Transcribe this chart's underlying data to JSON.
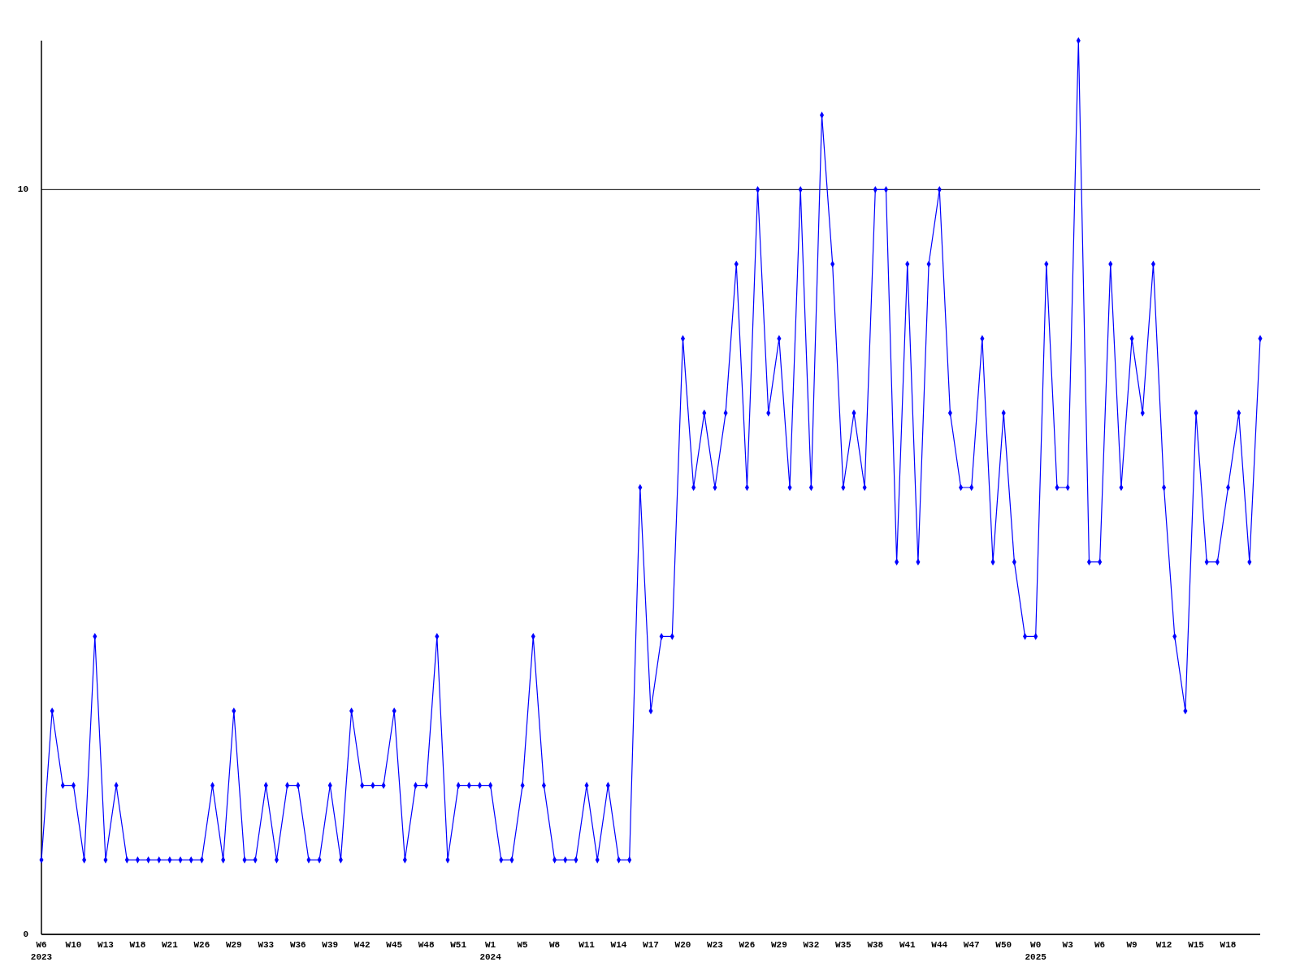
{
  "chart_data": {
    "type": "line",
    "categories": [
      "W6\n2023",
      null,
      null,
      "W10",
      null,
      null,
      "W13",
      null,
      null,
      "W18",
      null,
      null,
      "W21",
      null,
      null,
      "W26",
      null,
      null,
      "W29",
      null,
      null,
      "W33",
      null,
      null,
      "W36",
      null,
      null,
      "W39",
      null,
      null,
      "W42",
      null,
      null,
      "W45",
      null,
      null,
      "W48",
      null,
      null,
      "W51",
      null,
      null,
      "W1\n2024",
      null,
      null,
      "W5",
      null,
      null,
      "W8",
      null,
      null,
      "W11",
      null,
      null,
      "W14",
      null,
      null,
      "W17",
      null,
      null,
      "W20",
      null,
      null,
      "W23",
      null,
      null,
      "W26",
      null,
      null,
      "W29",
      null,
      null,
      "W32",
      null,
      null,
      "W35",
      null,
      null,
      "W38",
      null,
      null,
      "W41",
      null,
      null,
      "W44",
      null,
      null,
      "W47",
      null,
      null,
      "W50",
      null,
      null,
      "W0\n2025",
      null,
      null,
      "W3",
      null,
      null,
      "W6",
      null,
      null,
      "W9",
      null,
      null,
      "W12",
      null,
      null,
      "W15",
      null,
      null,
      "W18",
      null,
      null,
      null
    ],
    "values": [
      1,
      3,
      2,
      2,
      1,
      4,
      1,
      2,
      1,
      1,
      1,
      1,
      1,
      1,
      1,
      1,
      2,
      1,
      3,
      1,
      1,
      2,
      1,
      2,
      2,
      1,
      1,
      2,
      1,
      3,
      2,
      2,
      2,
      3,
      1,
      2,
      2,
      4,
      1,
      2,
      2,
      2,
      2,
      1,
      1,
      2,
      4,
      2,
      1,
      1,
      1,
      2,
      1,
      2,
      1,
      1,
      6,
      3,
      4,
      4,
      8,
      6,
      7,
      6,
      7,
      9,
      6,
      10,
      7,
      8,
      6,
      10,
      6,
      11,
      9,
      6,
      7,
      6,
      10,
      10,
      5,
      9,
      5,
      9,
      10,
      7,
      6,
      6,
      8,
      5,
      7,
      5,
      4,
      4,
      9,
      6,
      6,
      12,
      5,
      5,
      9,
      6,
      8,
      7,
      9,
      6,
      4,
      3,
      7,
      5,
      5,
      6,
      7,
      5,
      8
    ],
    "color": "#0000ff",
    "ylim": [
      0,
      12
    ],
    "yticks": [
      0,
      10
    ],
    "grid": "y",
    "marker": "diamond",
    "line_style": "solid"
  }
}
